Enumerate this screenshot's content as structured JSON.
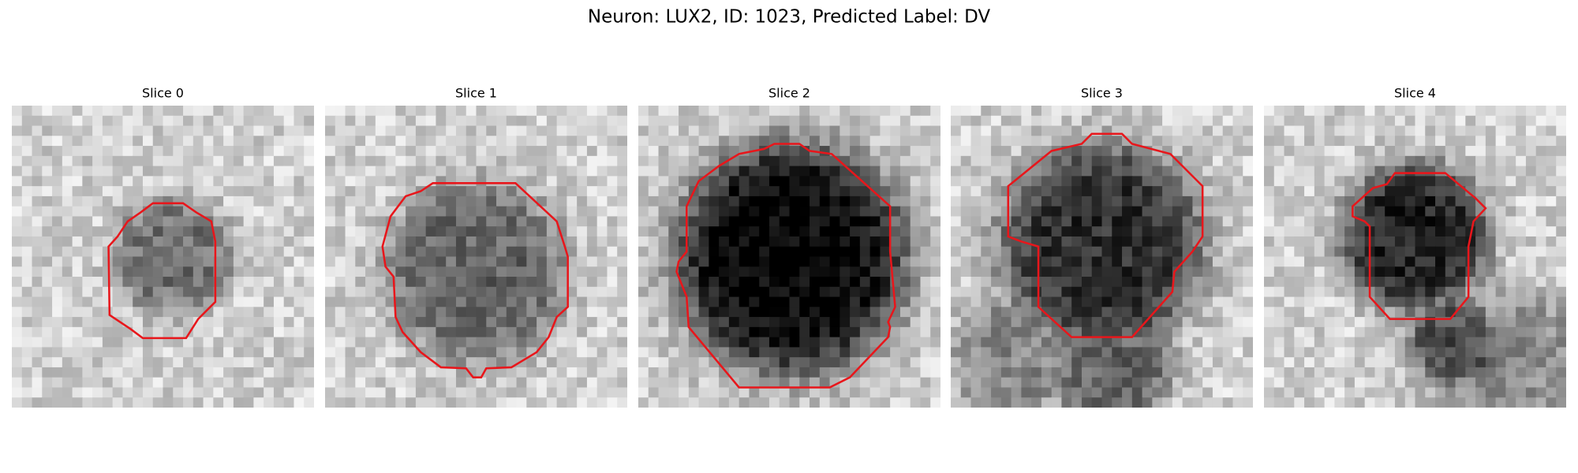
{
  "title": "Neuron: LUX2, ID: 1023, Predicted Label: DV",
  "panels": [
    {
      "title": "Slice 0"
    },
    {
      "title": "Slice 1"
    },
    {
      "title": "Slice 2"
    },
    {
      "title": "Slice 3"
    },
    {
      "title": "Slice 4"
    }
  ]
}
